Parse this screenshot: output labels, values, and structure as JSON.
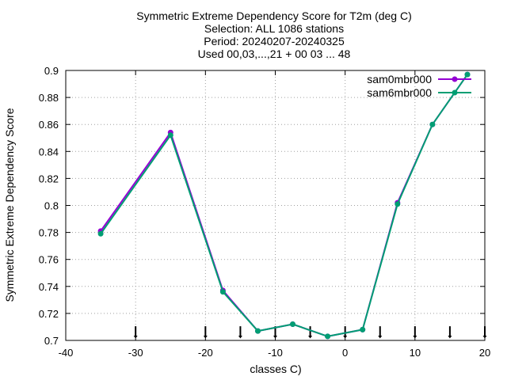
{
  "chart_data": {
    "type": "line",
    "title_lines": [
      "Symmetric Extreme Dependency Score  for T2m (deg C)",
      "Selection: ALL    1086 stations",
      "Period: 20240207-20240325",
      "Used 00,03,...,21 + 00 03 ... 48"
    ],
    "xlabel": "classes C)",
    "ylabel": "Symmetric Extreme Dependency Score",
    "xlim": [
      -40,
      20
    ],
    "ylim": [
      0.7,
      0.9
    ],
    "xticks": [
      -40,
      -30,
      -20,
      -10,
      0,
      10,
      20
    ],
    "xtick_labels": [
      "-40",
      "-30",
      "-20",
      "-10",
      "0",
      "10",
      "20"
    ],
    "yticks": [
      0.7,
      0.72,
      0.74,
      0.76,
      0.78,
      0.8,
      0.82,
      0.84,
      0.86,
      0.88,
      0.9
    ],
    "ytick_labels": [
      "0.7",
      "0.72",
      "0.74",
      "0.76",
      "0.78",
      "0.8",
      "0.82",
      "0.84",
      "0.86",
      "0.88",
      "0.9"
    ],
    "grid": true,
    "legend_position": "top-right",
    "class_markers_x": [
      -30,
      -20,
      -15,
      -10,
      -5,
      0,
      5,
      10,
      15,
      20
    ],
    "series": [
      {
        "name": "sam0mbr000",
        "color": "#9400d3",
        "segments": [
          [
            [
              -35,
              0.781
            ],
            [
              -25,
              0.854
            ]
          ],
          [
            [
              -25,
              0.854
            ],
            [
              -17.5,
              0.737
            ],
            [
              -12.5,
              0.707
            ],
            [
              -7.5,
              0.712
            ],
            [
              -2.5,
              0.703
            ],
            [
              2.5,
              0.708
            ],
            [
              7.5,
              0.802
            ],
            [
              12.5,
              0.86
            ],
            [
              17.5,
              0.897
            ]
          ]
        ]
      },
      {
        "name": "sam6mbr000",
        "color": "#009e73",
        "segments": [
          [
            [
              -35,
              0.779
            ],
            [
              -25,
              0.852
            ]
          ],
          [
            [
              -25,
              0.852
            ],
            [
              -17.5,
              0.736
            ],
            [
              -12.5,
              0.707
            ],
            [
              -7.5,
              0.712
            ],
            [
              -2.5,
              0.703
            ],
            [
              2.5,
              0.708
            ],
            [
              7.5,
              0.801
            ],
            [
              12.5,
              0.86
            ],
            [
              17.5,
              0.897
            ]
          ]
        ]
      }
    ]
  }
}
